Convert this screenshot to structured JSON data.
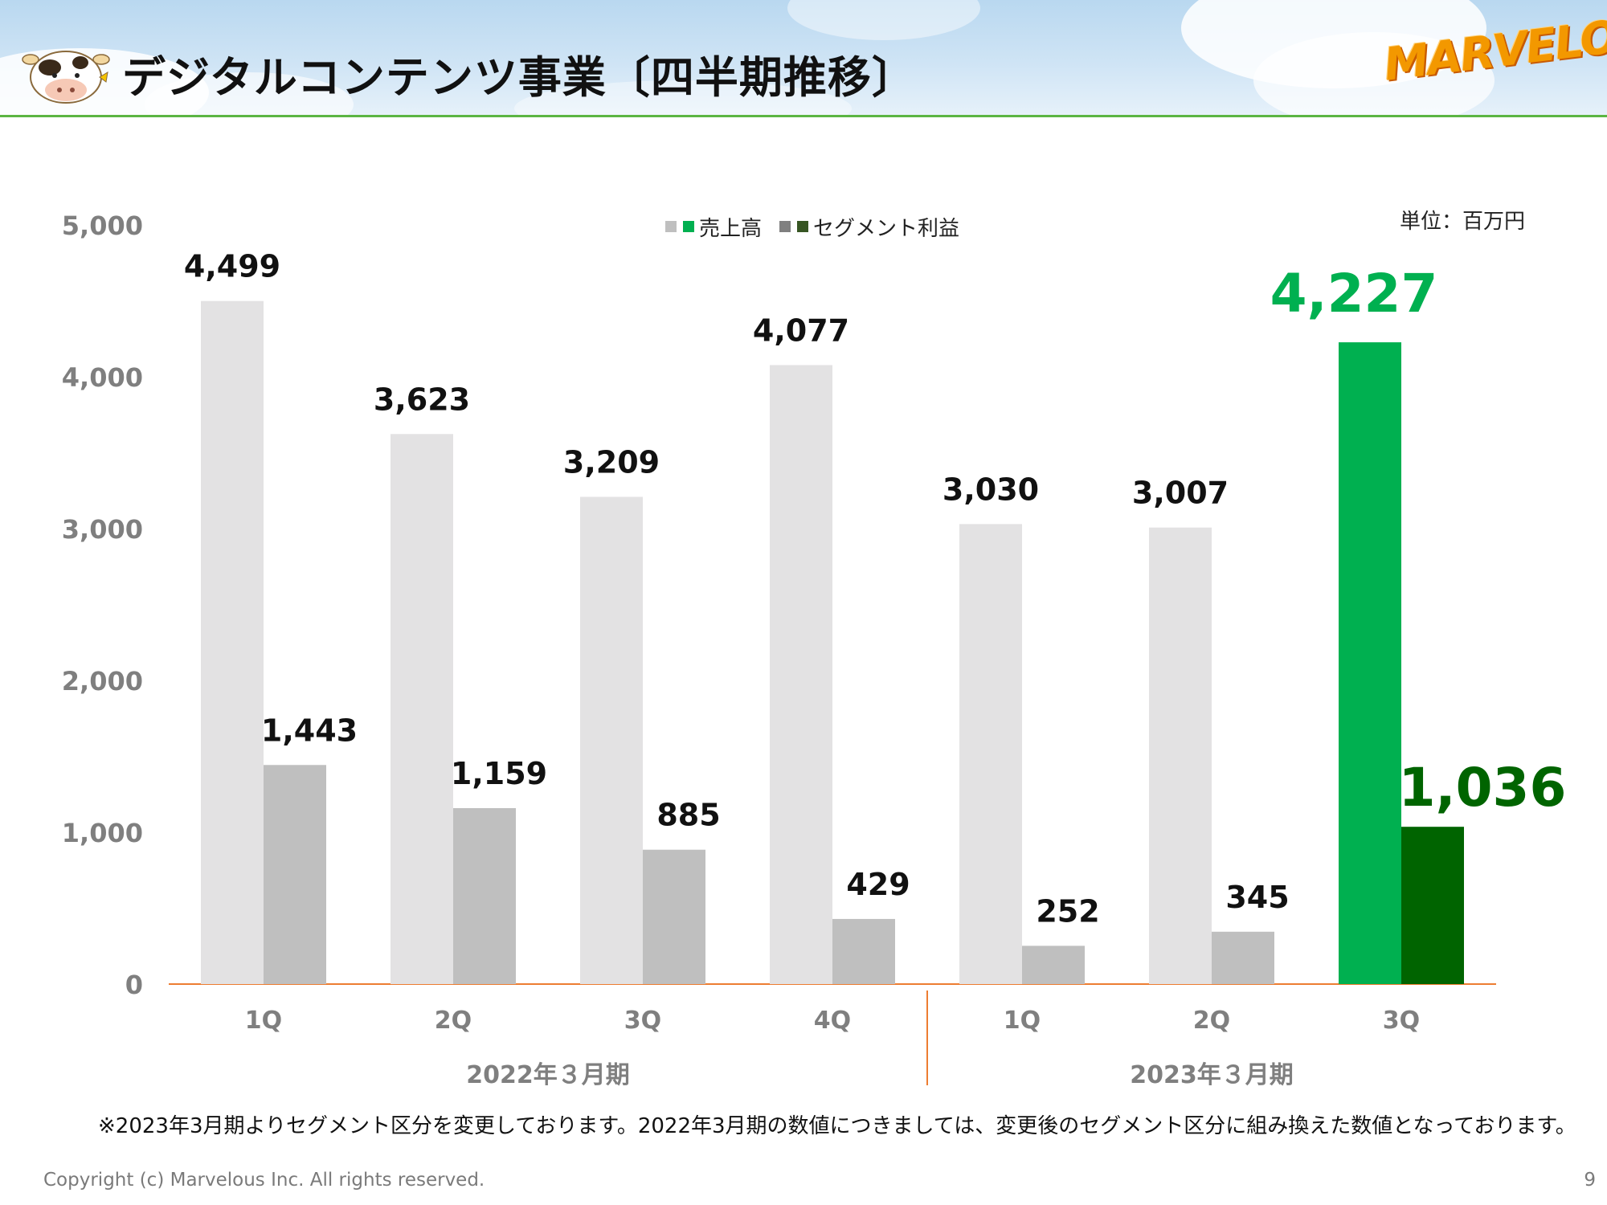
{
  "header": {
    "title": "デジタルコンテンツ事業〔四半期推移〕",
    "logo_text": "MARVELOUS!"
  },
  "unit_label": "単位：百万円",
  "legend": {
    "sales": "売上高",
    "profit": "セグメント利益"
  },
  "colors": {
    "sales_past": "#e3e2e3",
    "profit_past": "#bfbfbf",
    "sales_current": "#00b050",
    "profit_current": "#006400",
    "legend_sales_gray": "#bfbfbf",
    "legend_profit_gray": "#808080",
    "legend_sales_green": "#00b050",
    "legend_profit_green": "#375623",
    "axis_line": "#ed7d31",
    "axis_text": "#7f7f7f"
  },
  "chart_data": {
    "type": "bar",
    "ylim": [
      0,
      5000
    ],
    "yticks": [
      "0",
      "1,000",
      "2,000",
      "3,000",
      "4,000",
      "5,000"
    ],
    "yticks_values": [
      0,
      1000,
      2000,
      3000,
      4000,
      5000
    ],
    "categories": [
      "1Q",
      "2Q",
      "3Q",
      "4Q",
      "1Q",
      "2Q",
      "3Q"
    ],
    "groups": [
      {
        "label": "2022年３月期",
        "count": 4
      },
      {
        "label": "2023年３月期",
        "count": 3
      }
    ],
    "highlight_index": 6,
    "series": [
      {
        "name": "売上高",
        "values": [
          4499,
          3623,
          3209,
          4077,
          3030,
          3007,
          4227
        ],
        "labels": [
          "4,499",
          "3,623",
          "3,209",
          "4,077",
          "3,030",
          "3,007",
          "4,227"
        ]
      },
      {
        "name": "セグメント利益",
        "values": [
          1443,
          1159,
          885,
          429,
          252,
          345,
          1036
        ],
        "labels": [
          "1,443",
          "1,159",
          "885",
          "429",
          "252",
          "345",
          "1,036"
        ]
      }
    ]
  },
  "footnote": "※2023年3月期よりセグメント区分を変更しております。2022年3月期の数値につきましては、変更後のセグメント区分に組み換えた数値となっております。",
  "copyright": "Copyright (c) Marvelous Inc. All rights reserved.",
  "page_number": "9"
}
